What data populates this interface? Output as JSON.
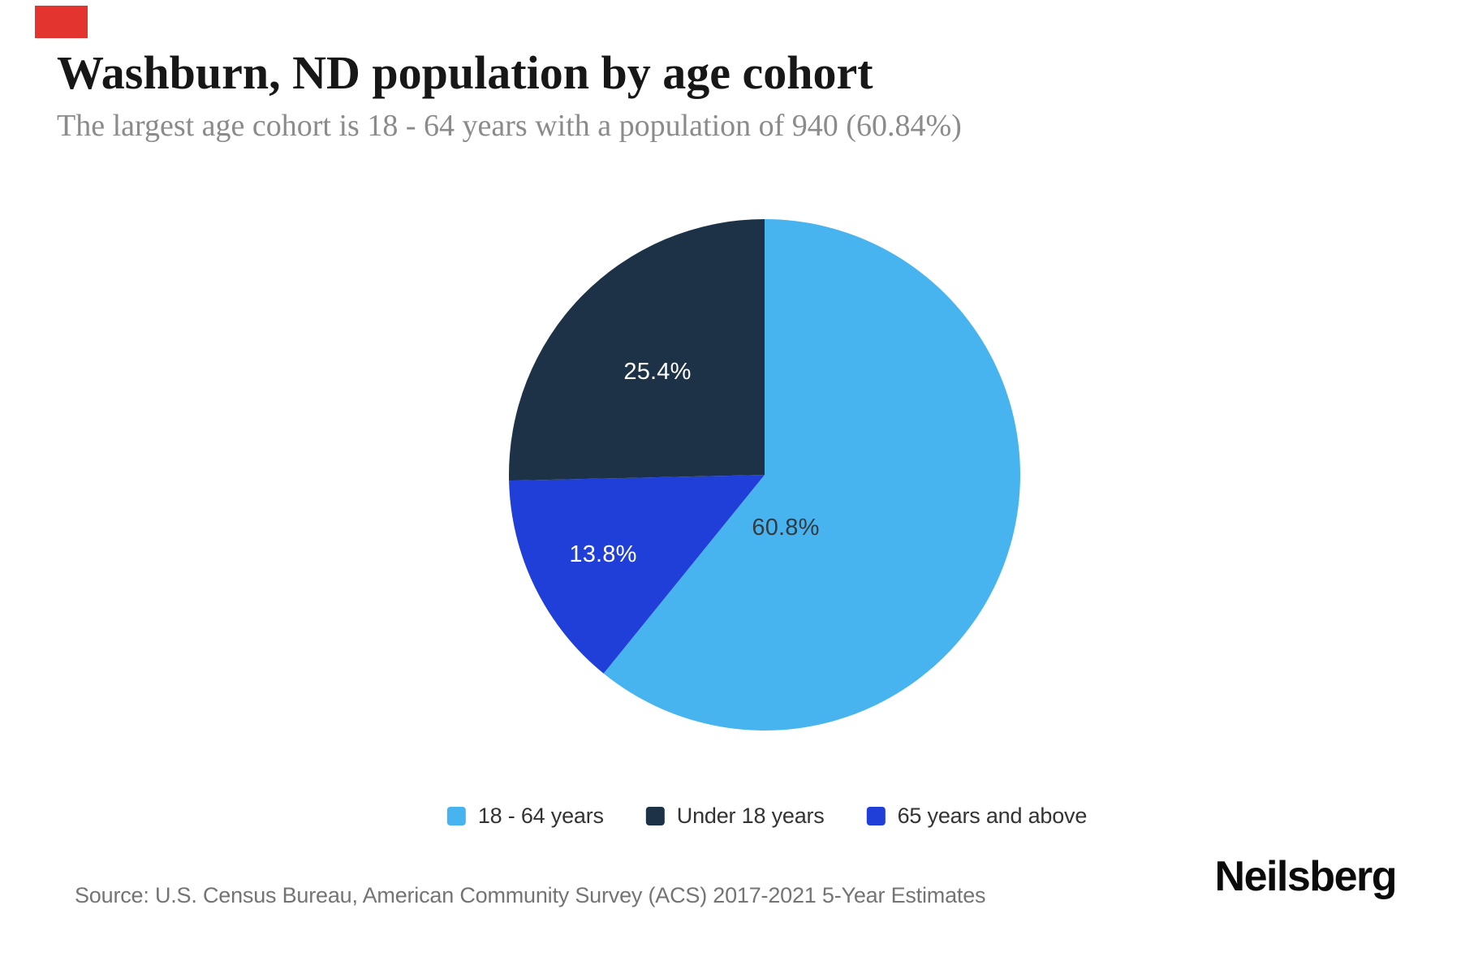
{
  "header": {
    "title": "Washburn, ND population by age cohort",
    "subtitle": "The largest age cohort is 18 - 64 years with a population of 940 (60.84%)"
  },
  "chart_data": {
    "type": "pie",
    "title": "Washburn, ND population by age cohort",
    "subtitle": "The largest age cohort is 18 - 64 years with a population of 940 (60.84%)",
    "unit": "percent",
    "start_angle_deg": 0,
    "direction": "clockwise",
    "slices": [
      {
        "name": "18 - 64 years",
        "pct": 60.84,
        "display_label": "60.8%",
        "population": 940,
        "color": "#48b4ef",
        "label_color": "#333a41"
      },
      {
        "name": "65 years and above",
        "pct": 13.8,
        "display_label": "13.8%",
        "color": "#1f3fd8",
        "label_color": "#ffffff"
      },
      {
        "name": "Under 18 years",
        "pct": 25.36,
        "display_label": "25.4%",
        "color": "#1d3246",
        "label_color": "#ffffff"
      }
    ],
    "legend": [
      {
        "label": "18 - 64 years",
        "color": "#48b4ef"
      },
      {
        "label": "Under 18 years",
        "color": "#1d3246"
      },
      {
        "label": "65 years and above",
        "color": "#1f3fd8"
      }
    ],
    "legend_position": "bottom"
  },
  "footer": {
    "source": "Source: U.S. Census Bureau, American Community Survey (ACS) 2017-2021 5-Year Estimates",
    "brand": "Neilsberg"
  },
  "decorations": {
    "marker_color": "#e3342f"
  }
}
